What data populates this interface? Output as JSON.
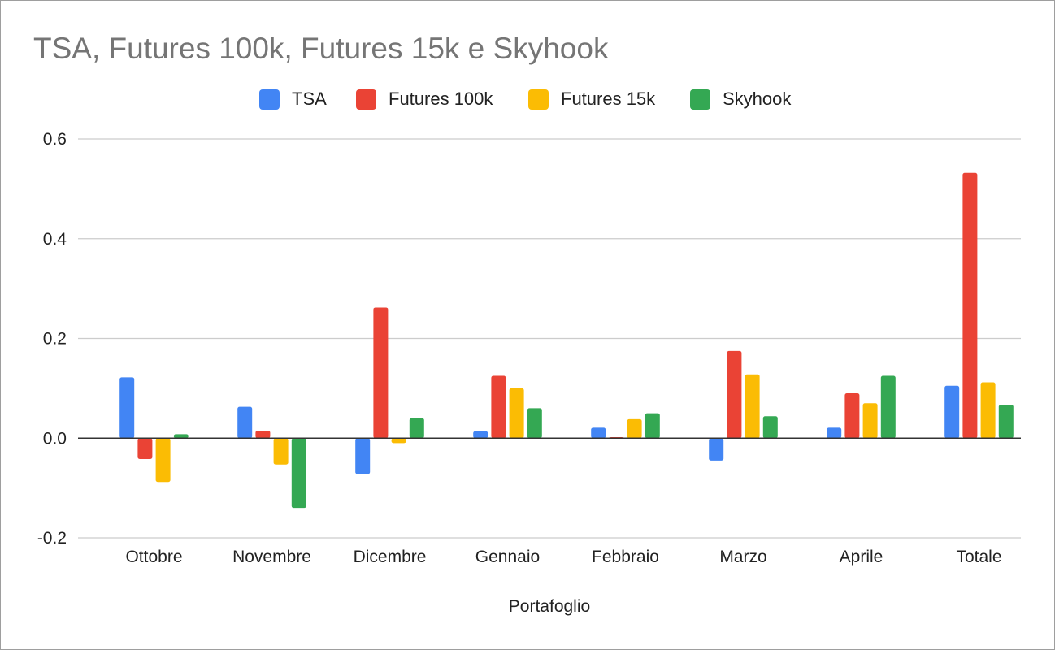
{
  "chart_data": {
    "type": "bar",
    "title": "TSA, Futures 100k, Futures 15k e Skyhook",
    "xlabel": "Portafoglio",
    "ylabel": "",
    "categories": [
      "Ottobre",
      "Novembre",
      "Dicembre",
      "Gennaio",
      "Febbraio",
      "Marzo",
      "Aprile",
      "Totale"
    ],
    "series": [
      {
        "name": "TSA",
        "color": "#4285f4",
        "values": [
          0.122,
          0.063,
          -0.072,
          0.014,
          0.021,
          -0.045,
          0.021,
          0.105
        ]
      },
      {
        "name": "Futures 100k",
        "color": "#ea4335",
        "values": [
          -0.042,
          0.015,
          0.262,
          0.125,
          0.002,
          0.175,
          0.09,
          0.532
        ]
      },
      {
        "name": "Futures 15k",
        "color": "#fbbc04",
        "values": [
          -0.088,
          -0.053,
          -0.01,
          0.1,
          0.038,
          0.128,
          0.07,
          0.112
        ]
      },
      {
        "name": "Skyhook",
        "color": "#34a853",
        "values": [
          0.008,
          -0.14,
          0.04,
          0.06,
          0.05,
          0.044,
          0.125,
          0.067
        ]
      }
    ],
    "ylim": [
      -0.2,
      0.6
    ],
    "yticks": [
      "-0.2",
      "0.0",
      "0.2",
      "0.4",
      "0.6"
    ],
    "grid": true,
    "legend_position": "top-center"
  }
}
